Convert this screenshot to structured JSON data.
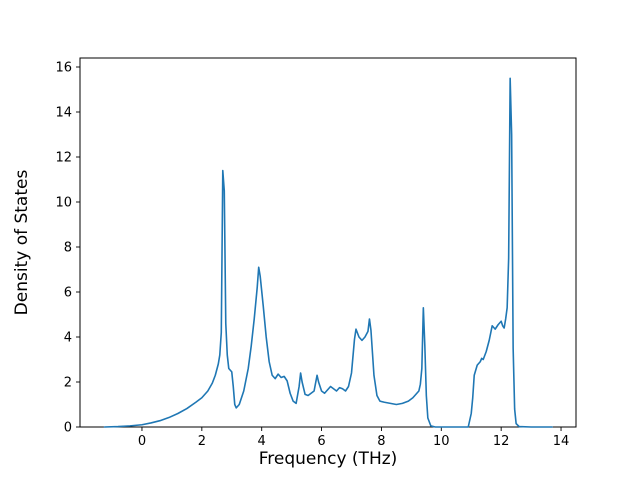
{
  "figure": {
    "background": "#ffffff"
  },
  "chart_data": {
    "type": "line",
    "title": "",
    "xlabel": "Frequency (THz)",
    "ylabel": "Density of States",
    "line_color": "#1f77b4",
    "line_width": 1.6,
    "axis_color": "#000000",
    "grid": false,
    "legend": null,
    "xlim": [
      -2.07,
      14.5
    ],
    "ylim": [
      0,
      16.4
    ],
    "xticks": [
      0,
      2,
      4,
      6,
      8,
      10,
      12,
      14
    ],
    "yticks": [
      0,
      2,
      4,
      6,
      8,
      10,
      12,
      14,
      16
    ],
    "x": [
      -1.25,
      -0.8,
      -0.4,
      0.0,
      0.3,
      0.6,
      0.9,
      1.2,
      1.5,
      1.8,
      2.0,
      2.2,
      2.35,
      2.45,
      2.55,
      2.6,
      2.65,
      2.7,
      2.75,
      2.8,
      2.85,
      2.9,
      3.0,
      3.05,
      3.1,
      3.15,
      3.25,
      3.4,
      3.55,
      3.65,
      3.75,
      3.85,
      3.9,
      3.95,
      4.05,
      4.15,
      4.25,
      4.35,
      4.45,
      4.55,
      4.65,
      4.75,
      4.85,
      4.95,
      5.05,
      5.15,
      5.25,
      5.3,
      5.35,
      5.45,
      5.55,
      5.65,
      5.75,
      5.85,
      5.9,
      6.0,
      6.1,
      6.2,
      6.3,
      6.4,
      6.5,
      6.6,
      6.7,
      6.8,
      6.9,
      7.0,
      7.1,
      7.15,
      7.25,
      7.35,
      7.45,
      7.55,
      7.6,
      7.65,
      7.75,
      7.85,
      7.95,
      8.1,
      8.3,
      8.5,
      8.7,
      8.9,
      9.05,
      9.15,
      9.25,
      9.3,
      9.35,
      9.4,
      9.45,
      9.5,
      9.55,
      9.65,
      9.8,
      10.2,
      10.6,
      10.9,
      11.0,
      11.05,
      11.1,
      11.2,
      11.3,
      11.35,
      11.4,
      11.5,
      11.6,
      11.7,
      11.8,
      11.9,
      12.0,
      12.05,
      12.1,
      12.15,
      12.2,
      12.25,
      12.3,
      12.35,
      12.4,
      12.45,
      12.5,
      12.6,
      13.0,
      13.7
    ],
    "y": [
      0,
      0.02,
      0.05,
      0.1,
      0.18,
      0.28,
      0.42,
      0.6,
      0.82,
      1.1,
      1.3,
      1.6,
      1.95,
      2.3,
      2.8,
      3.2,
      4.2,
      11.4,
      10.5,
      4.6,
      3.2,
      2.6,
      2.45,
      1.8,
      1.0,
      0.85,
      1.0,
      1.6,
      2.6,
      3.6,
      4.8,
      6.2,
      7.1,
      6.7,
      5.4,
      4.0,
      2.9,
      2.3,
      2.15,
      2.35,
      2.2,
      2.25,
      2.05,
      1.5,
      1.15,
      1.05,
      1.8,
      2.4,
      2.0,
      1.45,
      1.4,
      1.5,
      1.6,
      2.3,
      2.0,
      1.6,
      1.5,
      1.65,
      1.8,
      1.7,
      1.6,
      1.75,
      1.7,
      1.6,
      1.8,
      2.4,
      3.9,
      4.35,
      4.0,
      3.85,
      4.0,
      4.25,
      4.8,
      4.3,
      2.3,
      1.4,
      1.15,
      1.1,
      1.05,
      1.0,
      1.05,
      1.15,
      1.3,
      1.45,
      1.6,
      1.9,
      2.6,
      5.3,
      3.6,
      1.4,
      0.4,
      0.05,
      0.0,
      0.0,
      0.0,
      0.0,
      0.6,
      1.3,
      2.3,
      2.75,
      2.9,
      3.05,
      3.0,
      3.35,
      3.85,
      4.5,
      4.35,
      4.55,
      4.7,
      4.5,
      4.4,
      4.8,
      5.3,
      7.5,
      15.5,
      13.0,
      3.5,
      0.8,
      0.15,
      0.02,
      0.0,
      0.0
    ]
  }
}
